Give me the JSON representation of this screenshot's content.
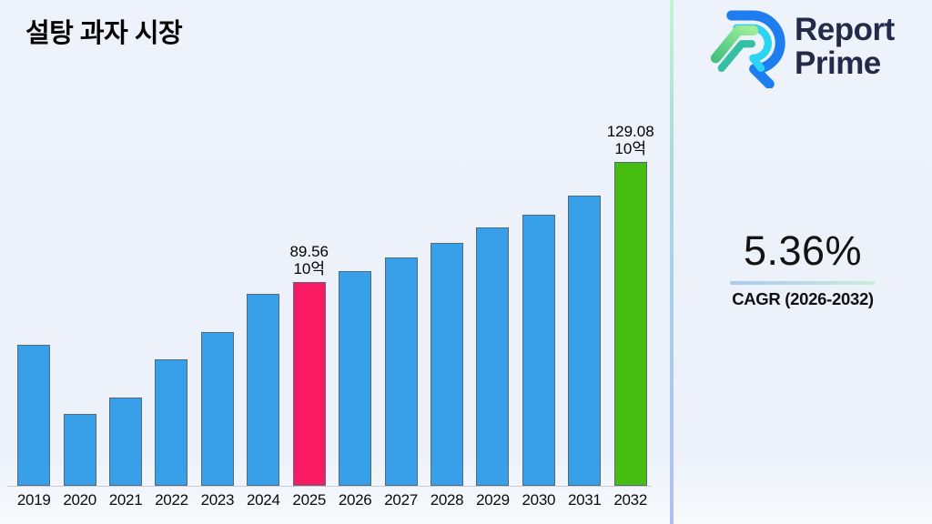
{
  "page": {
    "title": "설탕 과자 시장"
  },
  "brand": {
    "name": "Report Prime",
    "word1": "Report",
    "word2": "Prime"
  },
  "stat": {
    "value": "5.36%",
    "label": "CAGR (2026-2032)"
  },
  "colors": {
    "brand_navy": "#242B49",
    "logo_blue": "#1E7EF0",
    "logo_cyan": "#2BD4F2",
    "logo_green_light": "#9CEF9A",
    "logo_teal": "#35BFA5",
    "underline_left": "#A9C7F5",
    "underline_right": "#C8F0D8",
    "divider_top": "#BEF7D2",
    "divider_mid1": "#A8DCD8",
    "divider_mid2": "#A9CFE9",
    "divider_bottom": "#B3BEF3",
    "background": "#EDF2FB"
  },
  "chart_data": {
    "type": "bar",
    "title": "설탕 과자 시장",
    "xlabel": "",
    "ylabel": "",
    "unit": "10억",
    "categories": [
      "2019",
      "2020",
      "2021",
      "2022",
      "2023",
      "2024",
      "2025",
      "2026",
      "2027",
      "2028",
      "2029",
      "2030",
      "2031",
      "2032"
    ],
    "values": [
      68.9,
      46.2,
      51.6,
      64.1,
      73.1,
      85.7,
      89.56,
      93.2,
      97.7,
      102.5,
      107.5,
      111.7,
      118.0,
      129.08
    ],
    "labeled_points": {
      "2025": "89.56",
      "2032": "129.08"
    },
    "annotations": {
      "2025": {
        "value": "89.56",
        "unit": "10억"
      },
      "2032": {
        "value": "129.08",
        "unit": "10억"
      }
    },
    "bar_colors": {
      "default": "#38A0E8",
      "2025": "#F91A63",
      "2032": "#47BC11"
    },
    "ylim": [
      22.5,
      142.3
    ],
    "grid": false,
    "legend": false,
    "y_axis_visible": false
  }
}
